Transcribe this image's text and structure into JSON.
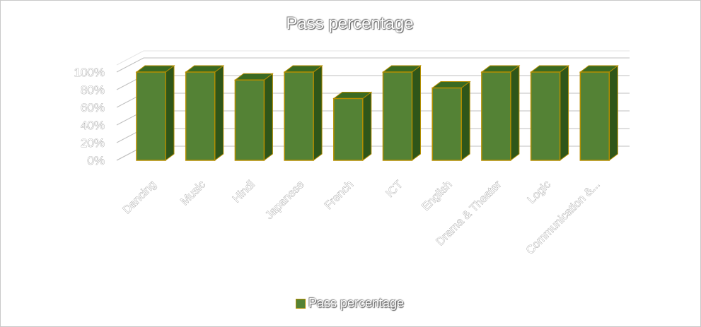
{
  "chart_data": {
    "type": "bar",
    "title": "Pass percentage",
    "categories": [
      "Dancing",
      "Music",
      "Hindi",
      "Japanese",
      "French",
      "ICT",
      "English",
      "Drama & Theater",
      "Logic",
      "Communication &..."
    ],
    "series": [
      {
        "name": "Pass percentage",
        "values": [
          100,
          100,
          91,
          100,
          70,
          100,
          82,
          100,
          100,
          100
        ]
      }
    ],
    "ylim": [
      0,
      100
    ],
    "yticks": [
      "0%",
      "20%",
      "40%",
      "60%",
      "80%",
      "100%"
    ],
    "grid": true,
    "legend": "bottom",
    "three_d": true,
    "colors": {
      "bar_front": "#548235",
      "bar_top": "#3a6a22",
      "bar_side": "#2f5619",
      "bar_outline": "#b58e00",
      "grid": "#bfbfbf"
    }
  }
}
